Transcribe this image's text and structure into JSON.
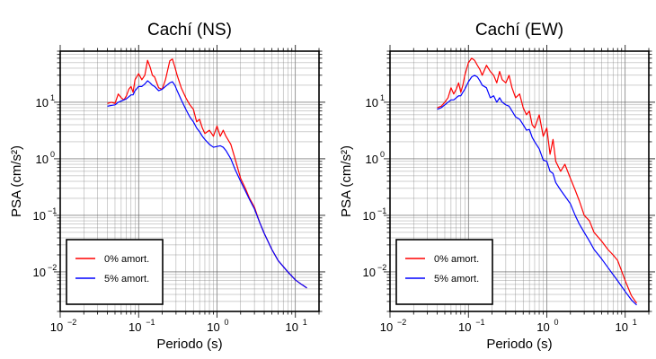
{
  "colors": {
    "series_0": "#ff0000",
    "series_5": "#0000ff",
    "grid": "#555555",
    "frame": "#000000"
  },
  "chart_data": [
    {
      "type": "line",
      "title": "Cachí (NS)",
      "xlabel": "Periodo (s)",
      "ylabel": "PSA (cm/s²)",
      "x_scale": "log",
      "y_scale": "log",
      "xlim": [
        0.01,
        20
      ],
      "ylim": [
        0.002,
        80
      ],
      "xticks": [
        0.01,
        0.1,
        1,
        10
      ],
      "xtick_labels": [
        {
          "base": "10",
          "exp": "−2"
        },
        {
          "base": "10",
          "exp": "−1"
        },
        {
          "base": "10",
          "exp": "0"
        },
        {
          "base": "10",
          "exp": "1"
        }
      ],
      "yticks": [
        0.01,
        0.1,
        1,
        10
      ],
      "ytick_labels": [
        {
          "base": "10",
          "exp": "−2"
        },
        {
          "base": "10",
          "exp": "−1"
        },
        {
          "base": "10",
          "exp": "0"
        },
        {
          "base": "10",
          "exp": "1"
        }
      ],
      "grid": true,
      "legend_position": "bottom-left",
      "series": [
        {
          "name": "0% amort.",
          "color": "#ff0000",
          "x": [
            0.04,
            0.045,
            0.05,
            0.055,
            0.06,
            0.065,
            0.07,
            0.075,
            0.08,
            0.085,
            0.09,
            0.1,
            0.11,
            0.12,
            0.13,
            0.14,
            0.15,
            0.16,
            0.18,
            0.2,
            0.22,
            0.25,
            0.27,
            0.29,
            0.31,
            0.35,
            0.4,
            0.45,
            0.5,
            0.55,
            0.6,
            0.65,
            0.7,
            0.8,
            0.9,
            1.0,
            1.1,
            1.2,
            1.3,
            1.5,
            1.7,
            2.0,
            2.3,
            2.6,
            3.0,
            3.5,
            4.0,
            5.0,
            6.0,
            8.0,
            10.0,
            12.0,
            14.0
          ],
          "y": [
            9.5,
            10,
            9.5,
            14,
            12,
            11,
            13,
            17,
            19,
            15,
            25,
            32,
            25,
            30,
            55,
            42,
            30,
            28,
            18,
            17,
            25,
            54,
            58,
            42,
            30,
            18,
            12,
            9,
            7.5,
            4.5,
            5,
            3.5,
            2.8,
            3.2,
            2.5,
            3.8,
            2.5,
            3.2,
            2.5,
            1.8,
            1.0,
            0.45,
            0.3,
            0.2,
            0.14,
            0.075,
            0.048,
            0.025,
            0.016,
            0.01,
            0.0072,
            0.006,
            0.0052
          ]
        },
        {
          "name": "5% amort.",
          "color": "#0000ff",
          "x": [
            0.04,
            0.045,
            0.05,
            0.055,
            0.06,
            0.065,
            0.07,
            0.075,
            0.08,
            0.085,
            0.09,
            0.1,
            0.11,
            0.12,
            0.13,
            0.14,
            0.15,
            0.16,
            0.18,
            0.2,
            0.22,
            0.25,
            0.27,
            0.29,
            0.31,
            0.35,
            0.4,
            0.45,
            0.5,
            0.55,
            0.6,
            0.65,
            0.7,
            0.8,
            0.9,
            1.0,
            1.1,
            1.2,
            1.3,
            1.5,
            1.7,
            2.0,
            2.3,
            2.6,
            3.0,
            3.5,
            4.0,
            5.0,
            6.0,
            8.0,
            10.0,
            12.0,
            14.0
          ],
          "y": [
            8.5,
            8.8,
            9,
            10,
            10.5,
            11,
            11.5,
            12.5,
            13.5,
            13.5,
            16,
            19,
            19,
            21,
            24,
            22,
            20,
            19,
            16,
            17,
            19,
            22,
            23,
            20,
            16,
            11,
            7.5,
            5.5,
            4.5,
            3.5,
            3.0,
            2.5,
            2.2,
            1.8,
            1.6,
            1.65,
            1.7,
            1.6,
            1.4,
            1.0,
            0.65,
            0.4,
            0.27,
            0.19,
            0.13,
            0.075,
            0.048,
            0.025,
            0.016,
            0.01,
            0.0072,
            0.006,
            0.0052
          ]
        }
      ]
    },
    {
      "type": "line",
      "title": "Cachí (EW)",
      "xlabel": "Periodo (s)",
      "ylabel": "PSA (cm/s²)",
      "x_scale": "log",
      "y_scale": "log",
      "xlim": [
        0.01,
        20
      ],
      "ylim": [
        0.002,
        80
      ],
      "xticks": [
        0.01,
        0.1,
        1,
        10
      ],
      "xtick_labels": [
        {
          "base": "10",
          "exp": "−2"
        },
        {
          "base": "10",
          "exp": "−1"
        },
        {
          "base": "10",
          "exp": "0"
        },
        {
          "base": "10",
          "exp": "1"
        }
      ],
      "yticks": [
        0.01,
        0.1,
        1,
        10
      ],
      "ytick_labels": [
        {
          "base": "10",
          "exp": "−2"
        },
        {
          "base": "10",
          "exp": "−1"
        },
        {
          "base": "10",
          "exp": "0"
        },
        {
          "base": "10",
          "exp": "1"
        }
      ],
      "grid": true,
      "legend_position": "bottom-left",
      "series": [
        {
          "name": "0% amort.",
          "color": "#ff0000",
          "x": [
            0.04,
            0.045,
            0.05,
            0.055,
            0.06,
            0.065,
            0.07,
            0.075,
            0.08,
            0.085,
            0.09,
            0.1,
            0.11,
            0.12,
            0.13,
            0.14,
            0.15,
            0.17,
            0.19,
            0.21,
            0.23,
            0.25,
            0.27,
            0.3,
            0.33,
            0.36,
            0.4,
            0.45,
            0.5,
            0.55,
            0.6,
            0.65,
            0.7,
            0.8,
            0.9,
            1.0,
            1.1,
            1.2,
            1.3,
            1.5,
            1.7,
            2.0,
            2.3,
            2.6,
            3.0,
            3.5,
            4.0,
            5.0,
            6.0,
            7.0,
            8.0,
            10.0,
            12.0,
            14.0
          ],
          "y": [
            8,
            8.5,
            10,
            12,
            18,
            14,
            17,
            22,
            15,
            20,
            30,
            50,
            60,
            55,
            45,
            38,
            30,
            45,
            35,
            30,
            22,
            35,
            25,
            22,
            30,
            18,
            12,
            14,
            8,
            6,
            7,
            4,
            3.5,
            6,
            2.5,
            3.5,
            1.2,
            2.2,
            0.9,
            0.6,
            0.8,
            0.45,
            0.28,
            0.18,
            0.1,
            0.08,
            0.05,
            0.035,
            0.025,
            0.02,
            0.016,
            0.007,
            0.0038,
            0.0028
          ]
        },
        {
          "name": "5% amort.",
          "color": "#0000ff",
          "x": [
            0.04,
            0.045,
            0.05,
            0.055,
            0.06,
            0.065,
            0.07,
            0.075,
            0.08,
            0.085,
            0.09,
            0.1,
            0.11,
            0.12,
            0.13,
            0.14,
            0.15,
            0.17,
            0.19,
            0.21,
            0.23,
            0.25,
            0.27,
            0.3,
            0.33,
            0.36,
            0.4,
            0.45,
            0.5,
            0.55,
            0.6,
            0.65,
            0.7,
            0.8,
            0.9,
            1.0,
            1.1,
            1.2,
            1.3,
            1.5,
            1.7,
            2.0,
            2.3,
            2.6,
            3.0,
            3.5,
            4.0,
            5.0,
            6.0,
            7.0,
            8.0,
            10.0,
            12.0,
            14.0
          ],
          "y": [
            7.5,
            8,
            9,
            10,
            11,
            11,
            12,
            13,
            13,
            15,
            17,
            23,
            28,
            30,
            28,
            24,
            20,
            18,
            12,
            13,
            10,
            12,
            10,
            9,
            8.5,
            7,
            5.5,
            5,
            4,
            3.2,
            3.3,
            2.4,
            2.0,
            1.5,
            0.95,
            0.9,
            0.6,
            0.55,
            0.38,
            0.28,
            0.22,
            0.16,
            0.1,
            0.07,
            0.05,
            0.035,
            0.025,
            0.017,
            0.012,
            0.009,
            0.007,
            0.0045,
            0.0032,
            0.0026
          ]
        }
      ]
    }
  ]
}
